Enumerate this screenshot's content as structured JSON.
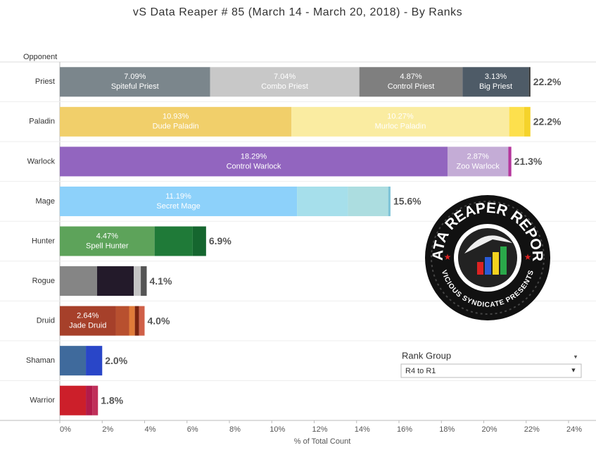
{
  "chart_data": {
    "type": "bar",
    "title": "vS Data Reaper #  85 (March 14 - March 20, 2018) - By Ranks",
    "row_header": "Opponent",
    "x_label": "% of Total Count",
    "categories": [
      "Priest",
      "Paladin",
      "Warlock",
      "Mage",
      "Hunter",
      "Rogue",
      "Druid",
      "Shaman",
      "Warrior"
    ],
    "stacks": [
      [
        {
          "name": "Spiteful Priest",
          "value": 7.09,
          "value_label": "7.09%",
          "color": "#7b868c"
        },
        {
          "name": "Combo Priest",
          "value": 7.04,
          "value_label": "7.04%",
          "color": "#c8c8c8"
        },
        {
          "name": "Control Priest",
          "value": 4.87,
          "value_label": "4.87%",
          "color": "#7f7f7f"
        },
        {
          "name": "Big Priest",
          "value": 3.13,
          "value_label": "3.13%",
          "color": "#4e5b67"
        },
        {
          "value": 0.07,
          "color": "#333333"
        }
      ],
      [
        {
          "name": "Dude Paladin",
          "value": 10.93,
          "value_label": "10.93%",
          "color": "#f1cf6a"
        },
        {
          "name": "Murloc Paladin",
          "value": 10.27,
          "value_label": "10.27%",
          "color": "#faeca1"
        },
        {
          "value": 0.7,
          "color": "#fde04d"
        },
        {
          "value": 0.3,
          "color": "#f5d32a"
        }
      ],
      [
        {
          "name": "Control Warlock",
          "value": 18.29,
          "value_label": "18.29%",
          "color": "#9265bf"
        },
        {
          "name": "Zoo Warlock",
          "value": 2.87,
          "value_label": "2.87%",
          "color": "#c4acd6"
        },
        {
          "value": 0.14,
          "color": "#b5379c"
        }
      ],
      [
        {
          "name": "Secret Mage",
          "value": 11.19,
          "value_label": "11.19%",
          "color": "#8dd1fa"
        },
        {
          "value": 2.4,
          "color": "#a6dfeb"
        },
        {
          "value": 1.9,
          "color": "#acdde0"
        },
        {
          "value": 0.11,
          "color": "#7fc4d8"
        }
      ],
      [
        {
          "name": "Spell Hunter",
          "value": 4.47,
          "value_label": "4.47%",
          "color": "#5da35a"
        },
        {
          "value": 1.8,
          "color": "#1f7a38"
        },
        {
          "value": 0.63,
          "color": "#15662f"
        }
      ],
      [
        {
          "value": 1.76,
          "color": "#858585"
        },
        {
          "value": 1.73,
          "color": "#231a2a"
        },
        {
          "value": 0.33,
          "color": "#c4c4c4"
        },
        {
          "value": 0.28,
          "color": "#555555"
        }
      ],
      [
        {
          "name": "Jade Druid",
          "value": 2.64,
          "value_label": "2.64%",
          "color": "#a6402a"
        },
        {
          "value": 0.63,
          "color": "#b8502f"
        },
        {
          "value": 0.27,
          "color": "#e07b39"
        },
        {
          "value": 0.2,
          "color": "#7a2410"
        },
        {
          "value": 0.26,
          "color": "#d06048"
        }
      ],
      [
        {
          "value": 1.23,
          "color": "#3f6a9c"
        },
        {
          "value": 0.77,
          "color": "#2946c8"
        }
      ],
      [
        {
          "value": 1.23,
          "color": "#cc1f2a"
        },
        {
          "value": 0.3,
          "color": "#b21b4a"
        },
        {
          "value": 0.27,
          "color": "#c0305a"
        }
      ]
    ],
    "totals": [
      22.2,
      22.2,
      21.3,
      15.6,
      6.9,
      4.1,
      4.0,
      2.0,
      1.8
    ],
    "total_labels": [
      "22.2%",
      "22.2%",
      "21.3%",
      "15.6%",
      "6.9%",
      "4.1%",
      "4.0%",
      "2.0%",
      "1.8%"
    ],
    "xlim": [
      0,
      24
    ],
    "xticks": [
      {
        "value": 0,
        "label": "0%"
      },
      {
        "value": 2,
        "label": "2%"
      },
      {
        "value": 4,
        "label": "4%"
      },
      {
        "value": 6,
        "label": "6%"
      },
      {
        "value": 8,
        "label": "8%"
      },
      {
        "value": 10,
        "label": "10%"
      },
      {
        "value": 12,
        "label": "12%"
      },
      {
        "value": 14,
        "label": "14%"
      },
      {
        "value": 16,
        "label": "16%"
      },
      {
        "value": 18,
        "label": "18%"
      },
      {
        "value": 20,
        "label": "20%"
      },
      {
        "value": 22,
        "label": "22%"
      },
      {
        "value": 24,
        "label": "24%"
      }
    ]
  },
  "logo": {
    "top_text": "DATA REAPER REPORT",
    "bottom_text": "VICIOUS SYNDICATE PRESENTS"
  },
  "filter": {
    "label": "Rank Group",
    "selected": "R4 to R1"
  }
}
